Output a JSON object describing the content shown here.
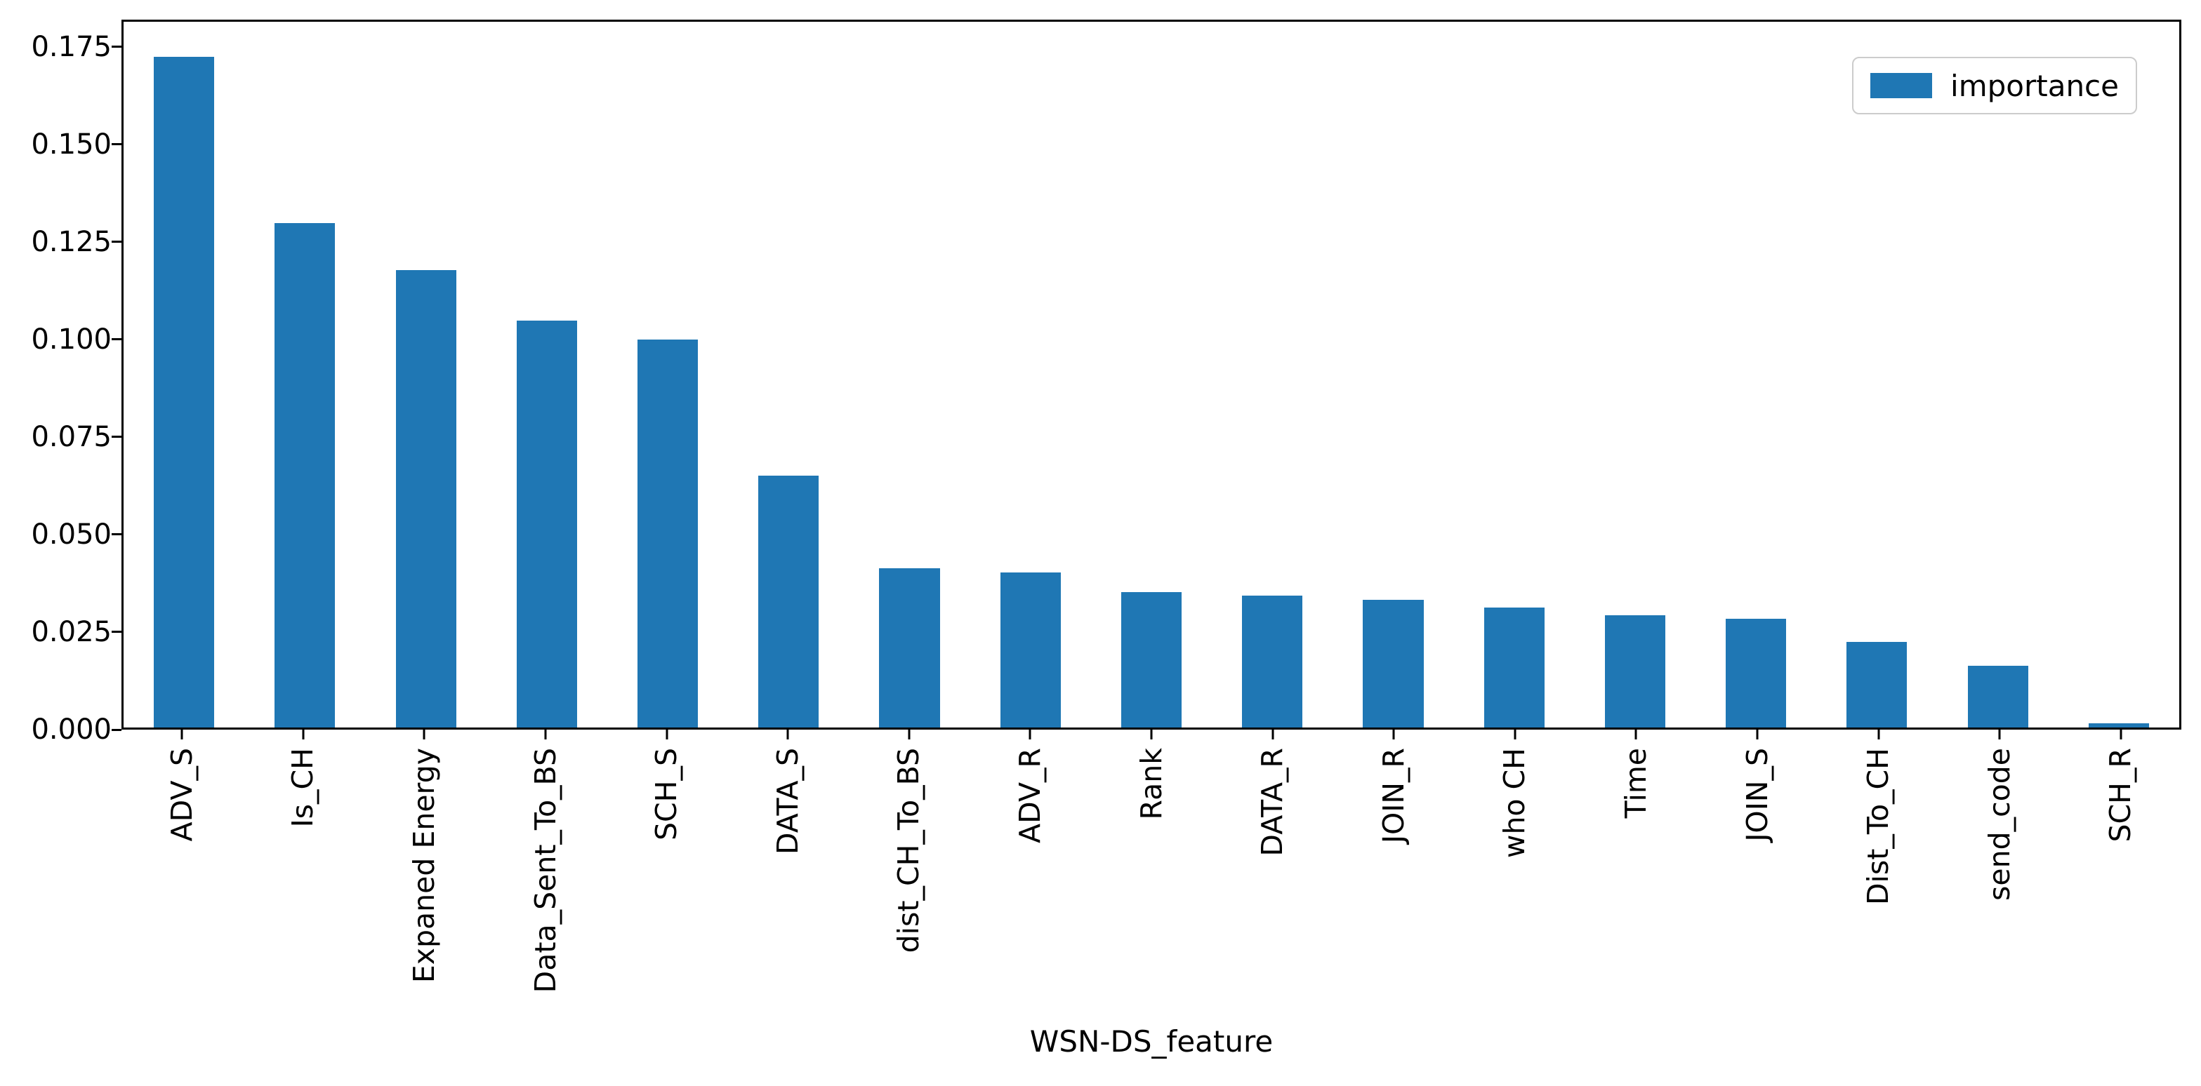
{
  "colors": {
    "bar": "#1f77b4",
    "spine": "#000000",
    "text": "#000000",
    "legend_border": "#cccccc",
    "background": "#ffffff"
  },
  "legend": {
    "label": "importance",
    "position": "upper right"
  },
  "chart_data": {
    "type": "bar",
    "title": "",
    "xlabel": "WSN-DS_feature",
    "ylabel": "",
    "grid": false,
    "ylim": [
      0,
      0.182
    ],
    "yticks": [
      "0.000",
      "0.025",
      "0.050",
      "0.075",
      "0.100",
      "0.125",
      "0.150",
      "0.175"
    ],
    "categories": [
      "ADV_S",
      "Is_CH",
      "Expaned Energy",
      "Data_Sent_To_BS",
      "SCH_S",
      "DATA_S",
      "dist_CH_To_BS",
      "ADV_R",
      "Rank",
      "DATA_R",
      "JOIN_R",
      "who CH",
      "Time",
      "JOIN_S",
      "Dist_To_CH",
      "send_code",
      "SCH_R"
    ],
    "series": [
      {
        "name": "importance",
        "values": [
          0.173,
          0.13,
          0.118,
          0.105,
          0.1,
          0.065,
          0.041,
          0.04,
          0.035,
          0.034,
          0.033,
          0.031,
          0.029,
          0.028,
          0.022,
          0.016,
          0.001
        ]
      }
    ]
  }
}
